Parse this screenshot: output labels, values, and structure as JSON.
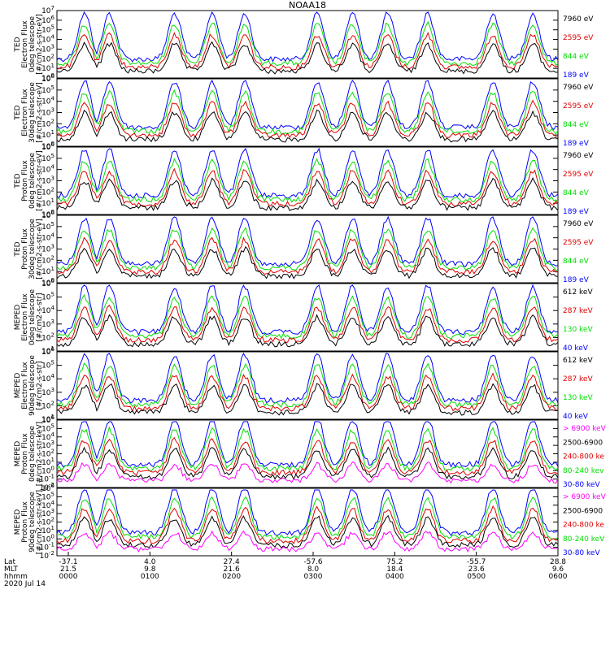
{
  "title": "NOAA18",
  "colors": {
    "black": "#000000",
    "red": "#e00000",
    "green": "#00e000",
    "blue": "#0000ff",
    "magenta": "#ff00ff"
  },
  "panels": [
    {
      "ylabel": [
        "TED",
        "Electron Flux",
        "0deg telescope",
        "[#/cm2-s-str-eV]"
      ],
      "yexp": [
        0,
        7
      ],
      "legend": [
        {
          "text": "7960 eV",
          "color": "black"
        },
        {
          "text": "2595 eV",
          "color": "red"
        },
        {
          "text": "844 eV",
          "color": "green"
        },
        {
          "text": "189 eV",
          "color": "blue"
        }
      ]
    },
    {
      "ylabel": [
        "TED",
        "Electron Flux",
        "30deg telescope",
        "[#/cm2-s-str-eV]"
      ],
      "yexp": [
        0,
        6
      ],
      "legend": [
        {
          "text": "7960 eV",
          "color": "black"
        },
        {
          "text": "2595 eV",
          "color": "red"
        },
        {
          "text": "844 eV",
          "color": "green"
        },
        {
          "text": "189 eV",
          "color": "blue"
        }
      ]
    },
    {
      "ylabel": [
        "TED",
        "Proton Flux",
        "0deg telescope",
        "[#/cm2-s-str-eV]"
      ],
      "yexp": [
        0,
        6
      ],
      "legend": [
        {
          "text": "7960 eV",
          "color": "black"
        },
        {
          "text": "2595 eV",
          "color": "red"
        },
        {
          "text": "844 eV",
          "color": "green"
        },
        {
          "text": "189 eV",
          "color": "blue"
        }
      ]
    },
    {
      "ylabel": [
        "TED",
        "Proton Flux",
        "30deg telescope",
        "[#/cm2-s-str-eV]"
      ],
      "yexp": [
        0,
        6
      ],
      "legend": [
        {
          "text": "7960 eV",
          "color": "black"
        },
        {
          "text": "2595 eV",
          "color": "red"
        },
        {
          "text": "844 eV",
          "color": "green"
        },
        {
          "text": "189 eV",
          "color": "blue"
        }
      ]
    },
    {
      "ylabel": [
        "MEPED",
        "Electron Flux",
        "0deg telescope",
        "[#/cm2-s-str]"
      ],
      "yexp": [
        1,
        6
      ],
      "legend": [
        {
          "text": "612 keV",
          "color": "black"
        },
        {
          "text": "287 keV",
          "color": "red"
        },
        {
          "text": "130 keV",
          "color": "green"
        },
        {
          "text": "40 keV",
          "color": "blue"
        }
      ]
    },
    {
      "ylabel": [
        "MEPED",
        "Electron Flux",
        "90deg telescope",
        "[#/cm2-s-str]"
      ],
      "yexp": [
        1,
        6
      ],
      "legend": [
        {
          "text": "612 keV",
          "color": "black"
        },
        {
          "text": "287 keV",
          "color": "red"
        },
        {
          "text": "130 keV",
          "color": "green"
        },
        {
          "text": "40 keV",
          "color": "blue"
        }
      ]
    },
    {
      "ylabel": [
        "MEPED",
        "Proton Flux",
        "0deg telescope",
        "[#/cm2-s-str-keV]"
      ],
      "yexp": [
        -2,
        6
      ],
      "legend": [
        {
          "text": "> 6900 keV",
          "color": "magenta"
        },
        {
          "text": "2500-6900",
          "color": "black"
        },
        {
          "text": "240-800 ke",
          "color": "red"
        },
        {
          "text": "80-240 kev",
          "color": "green"
        },
        {
          "text": "30-80 keV",
          "color": "blue"
        }
      ]
    },
    {
      "ylabel": [
        "MEPED",
        "Proton Flux",
        "90deg telescope",
        "[#/cm2-s-str-keV]"
      ],
      "yexp": [
        -2,
        6
      ],
      "legend": [
        {
          "text": "> 6900 keV",
          "color": "magenta"
        },
        {
          "text": "2500-6900",
          "color": "black"
        },
        {
          "text": "240-800 ke",
          "color": "red"
        },
        {
          "text": "80-240 keV",
          "color": "green"
        },
        {
          "text": "30-80 keV",
          "color": "blue"
        }
      ]
    }
  ],
  "xaxis": {
    "row_labels": [
      "Lat",
      "MLT",
      "hhmm"
    ],
    "ticks": [
      {
        "lat": "-37.1",
        "mlt": "21.5",
        "hhmm": "0000"
      },
      {
        "lat": "4.0",
        "mlt": "9.8",
        "hhmm": "0100"
      },
      {
        "lat": "27.4",
        "mlt": "21.6",
        "hhmm": "0200"
      },
      {
        "lat": "-57.6",
        "mlt": "8.0",
        "hhmm": "0300"
      },
      {
        "lat": "75.2",
        "mlt": "18.4",
        "hhmm": "0400"
      },
      {
        "lat": "-55.7",
        "mlt": "23.6",
        "hhmm": "0500"
      },
      {
        "lat": "28.8",
        "mlt": "9.6",
        "hhmm": "0600"
      }
    ],
    "date": "2020 Jul 14"
  },
  "chart_data": {
    "type": "line",
    "title": "NOAA18",
    "x_range": [
      "0000",
      "0600"
    ],
    "scale": "log",
    "panel_count": 8,
    "note_series": "time series of particle flux per energy channel; colors per legend"
  }
}
